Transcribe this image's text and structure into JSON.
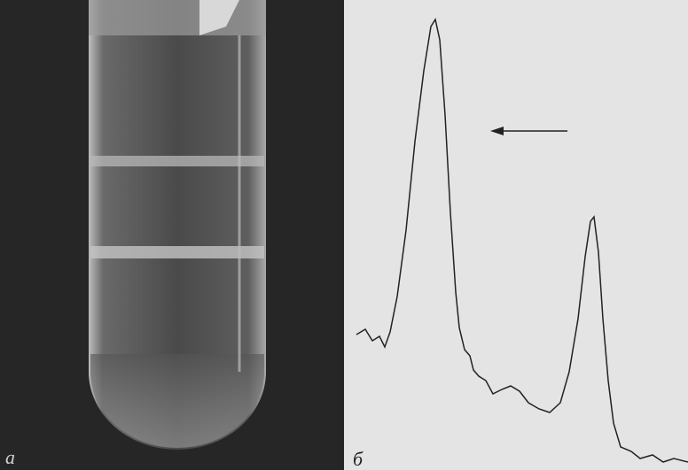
{
  "panels": [
    {
      "label": "а"
    },
    {
      "label": "б"
    }
  ]
}
